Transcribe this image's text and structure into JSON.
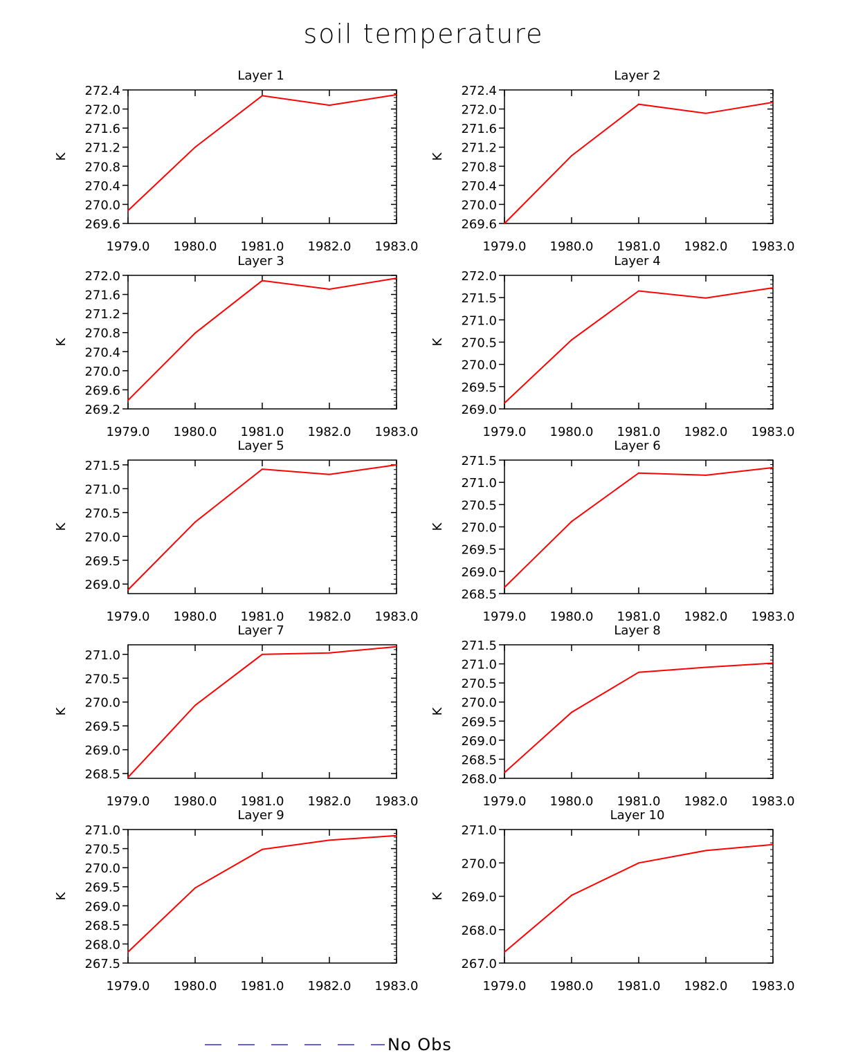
{
  "chart_data": {
    "type": "line",
    "title": "soil temperature",
    "series_color": "#ff0000",
    "legend": {
      "label": "No Obs",
      "color": "#3030c0",
      "style": "dashed",
      "placement": "bottom-center"
    },
    "panels": [
      {
        "title": "Layer 1",
        "ylabel": "K",
        "x": [
          1979.0,
          1980.0,
          1981.0,
          1982.0,
          1983.0
        ],
        "y": [
          269.87,
          271.2,
          272.28,
          272.08,
          272.3
        ],
        "xlim": [
          1979.0,
          1983.0
        ],
        "ylim": [
          269.6,
          272.4
        ],
        "xticks": [
          "1979.0",
          "1980.0",
          "1981.0",
          "1982.0",
          "1983.0"
        ],
        "yticks": [
          "269.6",
          "270.0",
          "270.4",
          "270.8",
          "271.2",
          "271.6",
          "272.0",
          "272.4"
        ]
      },
      {
        "title": "Layer 2",
        "ylabel": "K",
        "x": [
          1979.0,
          1980.0,
          1981.0,
          1982.0,
          1983.0
        ],
        "y": [
          269.6,
          271.02,
          272.1,
          271.91,
          272.14
        ],
        "xlim": [
          1979.0,
          1983.0
        ],
        "ylim": [
          269.6,
          272.4
        ],
        "xticks": [
          "1979.0",
          "1980.0",
          "1981.0",
          "1982.0",
          "1983.0"
        ],
        "yticks": [
          "269.6",
          "270.0",
          "270.4",
          "270.8",
          "271.2",
          "271.6",
          "272.0",
          "272.4"
        ]
      },
      {
        "title": "Layer 3",
        "ylabel": "K",
        "x": [
          1979.0,
          1980.0,
          1981.0,
          1982.0,
          1983.0
        ],
        "y": [
          269.38,
          270.79,
          271.89,
          271.71,
          271.94
        ],
        "xlim": [
          1979.0,
          1983.0
        ],
        "ylim": [
          269.2,
          272.0
        ],
        "xticks": [
          "1979.0",
          "1980.0",
          "1981.0",
          "1982.0",
          "1983.0"
        ],
        "yticks": [
          "269.2",
          "269.6",
          "270.0",
          "270.4",
          "270.8",
          "271.2",
          "271.6",
          "272.0"
        ]
      },
      {
        "title": "Layer 4",
        "ylabel": "K",
        "x": [
          1979.0,
          1980.0,
          1981.0,
          1982.0,
          1983.0
        ],
        "y": [
          269.13,
          270.55,
          271.65,
          271.49,
          271.72
        ],
        "xlim": [
          1979.0,
          1983.0
        ],
        "ylim": [
          269.0,
          272.0
        ],
        "xticks": [
          "1979.0",
          "1980.0",
          "1981.0",
          "1982.0",
          "1983.0"
        ],
        "yticks": [
          "269.0",
          "269.5",
          "270.0",
          "270.5",
          "271.0",
          "271.5",
          "272.0"
        ]
      },
      {
        "title": "Layer 5",
        "ylabel": "K",
        "x": [
          1979.0,
          1980.0,
          1981.0,
          1982.0,
          1983.0
        ],
        "y": [
          268.88,
          270.3,
          271.41,
          271.3,
          271.5
        ],
        "xlim": [
          1979.0,
          1983.0
        ],
        "ylim": [
          268.8,
          271.6
        ],
        "xticks": [
          "1979.0",
          "1980.0",
          "1981.0",
          "1982.0",
          "1983.0"
        ],
        "yticks": [
          "269.0",
          "269.5",
          "270.0",
          "270.5",
          "271.0",
          "271.5"
        ]
      },
      {
        "title": "Layer 6",
        "ylabel": "K",
        "x": [
          1979.0,
          1980.0,
          1981.0,
          1982.0,
          1983.0
        ],
        "y": [
          268.64,
          270.12,
          271.21,
          271.16,
          271.33
        ],
        "xlim": [
          1979.0,
          1983.0
        ],
        "ylim": [
          268.5,
          271.5
        ],
        "xticks": [
          "1979.0",
          "1980.0",
          "1981.0",
          "1982.0",
          "1983.0"
        ],
        "yticks": [
          "268.5",
          "269.0",
          "269.5",
          "270.0",
          "270.5",
          "271.0",
          "271.5"
        ]
      },
      {
        "title": "Layer 7",
        "ylabel": "K",
        "x": [
          1979.0,
          1980.0,
          1981.0,
          1982.0,
          1983.0
        ],
        "y": [
          268.42,
          269.93,
          271.0,
          271.03,
          271.16
        ],
        "xlim": [
          1979.0,
          1983.0
        ],
        "ylim": [
          268.4,
          271.2
        ],
        "xticks": [
          "1979.0",
          "1980.0",
          "1981.0",
          "1982.0",
          "1983.0"
        ],
        "yticks": [
          "268.5",
          "269.0",
          "269.5",
          "270.0",
          "270.5",
          "271.0"
        ]
      },
      {
        "title": "Layer 8",
        "ylabel": "K",
        "x": [
          1979.0,
          1980.0,
          1981.0,
          1982.0,
          1983.0
        ],
        "y": [
          268.15,
          269.73,
          270.78,
          270.91,
          271.02
        ],
        "xlim": [
          1979.0,
          1983.0
        ],
        "ylim": [
          268.0,
          271.5
        ],
        "xticks": [
          "1979.0",
          "1980.0",
          "1981.0",
          "1982.0",
          "1983.0"
        ],
        "yticks": [
          "268.0",
          "268.5",
          "269.0",
          "269.5",
          "270.0",
          "270.5",
          "271.0",
          "271.5"
        ]
      },
      {
        "title": "Layer 9",
        "ylabel": "K",
        "x": [
          1979.0,
          1980.0,
          1981.0,
          1982.0,
          1983.0
        ],
        "y": [
          267.79,
          269.47,
          270.48,
          270.72,
          270.84
        ],
        "xlim": [
          1979.0,
          1983.0
        ],
        "ylim": [
          267.5,
          271.0
        ],
        "xticks": [
          "1979.0",
          "1980.0",
          "1981.0",
          "1982.0",
          "1983.0"
        ],
        "yticks": [
          "267.5",
          "268.0",
          "268.5",
          "269.0",
          "269.5",
          "270.0",
          "270.5",
          "271.0"
        ]
      },
      {
        "title": "Layer 10",
        "ylabel": "K",
        "x": [
          1979.0,
          1980.0,
          1981.0,
          1982.0,
          1983.0
        ],
        "y": [
          267.33,
          269.03,
          270.0,
          270.37,
          270.55
        ],
        "xlim": [
          1979.0,
          1983.0
        ],
        "ylim": [
          267.0,
          271.0
        ],
        "xticks": [
          "1979.0",
          "1980.0",
          "1981.0",
          "1982.0",
          "1983.0"
        ],
        "yticks": [
          "267.0",
          "268.0",
          "269.0",
          "270.0",
          "271.0"
        ]
      }
    ]
  }
}
